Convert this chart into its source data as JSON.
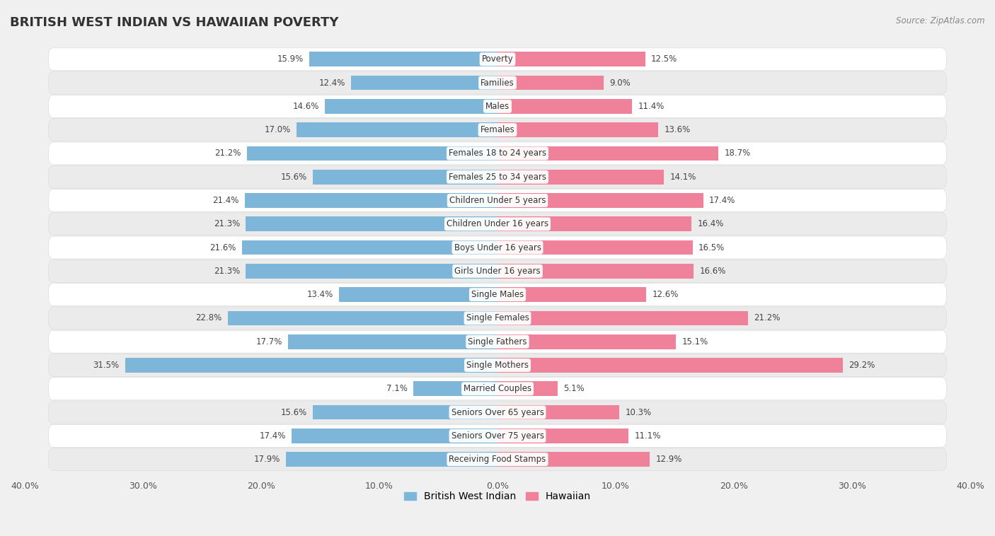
{
  "title": "BRITISH WEST INDIAN VS HAWAIIAN POVERTY",
  "source": "Source: ZipAtlas.com",
  "categories": [
    "Poverty",
    "Families",
    "Males",
    "Females",
    "Females 18 to 24 years",
    "Females 25 to 34 years",
    "Children Under 5 years",
    "Children Under 16 years",
    "Boys Under 16 years",
    "Girls Under 16 years",
    "Single Males",
    "Single Females",
    "Single Fathers",
    "Single Mothers",
    "Married Couples",
    "Seniors Over 65 years",
    "Seniors Over 75 years",
    "Receiving Food Stamps"
  ],
  "british_west_indian": [
    15.9,
    12.4,
    14.6,
    17.0,
    21.2,
    15.6,
    21.4,
    21.3,
    21.6,
    21.3,
    13.4,
    22.8,
    17.7,
    31.5,
    7.1,
    15.6,
    17.4,
    17.9
  ],
  "hawaiian": [
    12.5,
    9.0,
    11.4,
    13.6,
    18.7,
    14.1,
    17.4,
    16.4,
    16.5,
    16.6,
    12.6,
    21.2,
    15.1,
    29.2,
    5.1,
    10.3,
    11.1,
    12.9
  ],
  "british_color": "#7EB6D9",
  "hawaiian_color": "#F0819A",
  "row_light": "#f5f5f5",
  "row_dark": "#e8e8e8",
  "background_color": "#f0f0f0",
  "xlim": 40.0,
  "bar_height": 0.62,
  "legend_labels": [
    "British West Indian",
    "Hawaiian"
  ],
  "tick_interval": 10
}
